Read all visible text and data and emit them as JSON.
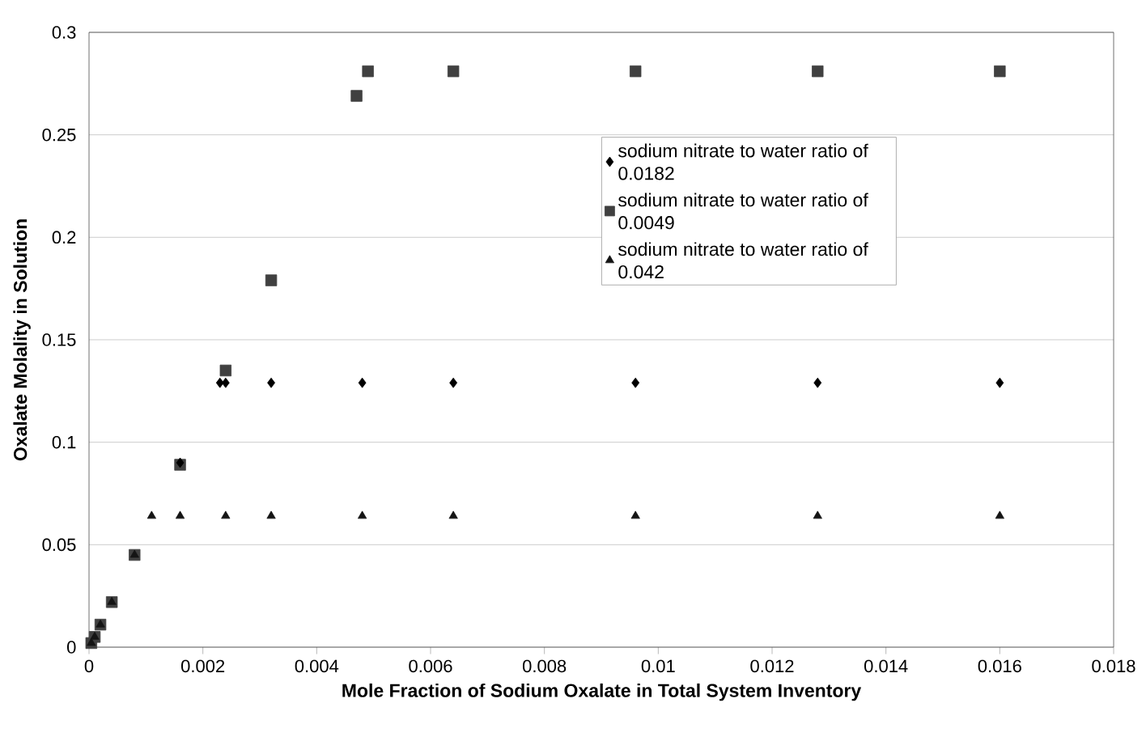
{
  "chart_data": {
    "type": "scatter",
    "xlabel": "Mole Fraction of Sodium Oxalate in Total System Inventory",
    "ylabel": "Oxalate Molality in Solution",
    "xlim": [
      0,
      0.018
    ],
    "xticks": [
      0,
      0.002,
      0.004,
      0.006,
      0.008,
      0.01,
      0.012,
      0.014,
      0.016,
      0.018
    ],
    "ylim": [
      0,
      0.3
    ],
    "yticks": [
      0,
      0.05,
      0.1,
      0.15,
      0.2,
      0.25,
      0.3
    ],
    "grid": "y",
    "legend": "top right",
    "series": [
      {
        "name": "sodium nitrate to water ratio of 0.0182",
        "color": "#000000",
        "marker": "diamond",
        "x": [
          0.0016,
          0.0023,
          0.0024,
          0.0032,
          0.0048,
          0.0064,
          0.0096,
          0.0128,
          0.016
        ],
        "values": [
          0.09,
          0.129,
          0.129,
          0.129,
          0.129,
          0.129,
          0.129,
          0.129,
          0.129
        ]
      },
      {
        "name": "sodium nitrate to water ratio of 0.0049",
        "color": "#404040",
        "marker": "square",
        "x": [
          4e-05,
          0.0001,
          0.0002,
          0.0004,
          0.0008,
          0.0016,
          0.0024,
          0.0032,
          0.0047,
          0.0049,
          0.0064,
          0.0096,
          0.0128,
          0.016
        ],
        "values": [
          0.002,
          0.005,
          0.011,
          0.022,
          0.045,
          0.089,
          0.135,
          0.179,
          0.269,
          0.281,
          0.281,
          0.281,
          0.281,
          0.281
        ]
      },
      {
        "name": "sodium nitrate to water ratio of 0.042",
        "color": "#141414",
        "marker": "triangle",
        "x": [
          4e-05,
          0.0001,
          0.0002,
          0.0004,
          0.0008,
          0.0011,
          0.0016,
          0.0024,
          0.0032,
          0.0048,
          0.0064,
          0.0096,
          0.0128,
          0.016
        ],
        "values": [
          0.002,
          0.005,
          0.011,
          0.022,
          0.045,
          0.064,
          0.064,
          0.064,
          0.064,
          0.064,
          0.064,
          0.064,
          0.064,
          0.064
        ]
      }
    ]
  }
}
